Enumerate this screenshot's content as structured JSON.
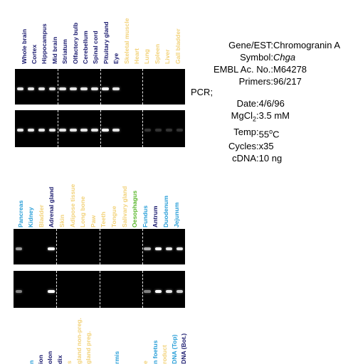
{
  "colors": {
    "navy": "#1a1a6e",
    "light_blue": "#2a9fd8",
    "yellow": "#f2d27a",
    "green": "#5cb82e"
  },
  "panel1": {
    "lanes": [
      {
        "label": "Whole brain",
        "color": "navy",
        "band1": 0.9,
        "band2": 0.9
      },
      {
        "label": "Cortex",
        "color": "navy",
        "band1": 0.9,
        "band2": 0.9
      },
      {
        "label": "Hippocampus",
        "color": "navy",
        "band1": 0.9,
        "band2": 0.9
      },
      {
        "label": "Mid brain",
        "color": "navy",
        "band1": 0.9,
        "band2": 0.9
      },
      {
        "label": "Striatum",
        "color": "navy",
        "band1": 0.9,
        "band2": 0.9
      },
      {
        "label": "Olfactory bulb",
        "color": "navy",
        "band1": 0.9,
        "band2": 0.9
      },
      {
        "label": "Cerebellum",
        "color": "navy",
        "band1": 0.9,
        "band2": 0.9
      },
      {
        "label": "Spinal cord",
        "color": "navy",
        "band1": 0.9,
        "band2": 0.9
      },
      {
        "label": "Pituitary gland",
        "color": "navy",
        "band1": 1.0,
        "band2": 1.0
      },
      {
        "label": "Eye",
        "color": "navy",
        "band1": 0.9,
        "band2": 0.9
      },
      {
        "label": "Skeletal muscle",
        "color": "yellow",
        "band1": 0,
        "band2": 0
      },
      {
        "label": "Heart",
        "color": "yellow",
        "band1": 0,
        "band2": 0
      },
      {
        "label": "Lung",
        "color": "yellow",
        "band1": 0,
        "band2": 0.2
      },
      {
        "label": "Spleen",
        "color": "yellow",
        "band1": 0,
        "band2": 0.2
      },
      {
        "label": "Liver",
        "color": "yellow",
        "band1": 0,
        "band2": 0.2
      },
      {
        "label": "Gall bladder",
        "color": "yellow",
        "band1": 0,
        "band2": 0.2
      }
    ]
  },
  "panel2": {
    "lanes": [
      {
        "label": "Pancreas",
        "color": "light_blue",
        "band1": 0.6,
        "band2": 0.5
      },
      {
        "label": "Kidney",
        "color": "light_blue",
        "band1": 0,
        "band2": 0
      },
      {
        "label": "Bladder",
        "color": "yellow",
        "band1": 0,
        "band2": 0
      },
      {
        "label": "Adrenal gland",
        "color": "navy",
        "band1": 1.0,
        "band2": 1.0
      },
      {
        "label": "Skin",
        "color": "yellow",
        "band1": 0,
        "band2": 0
      },
      {
        "label": "Adipose tissue",
        "color": "yellow",
        "band1": 0,
        "band2": 0
      },
      {
        "label": "Long bone",
        "color": "yellow",
        "band1": 0,
        "band2": 0
      },
      {
        "label": "Paw",
        "color": "yellow",
        "band1": 0,
        "band2": 0
      },
      {
        "label": "Teeth",
        "color": "yellow",
        "band1": 0,
        "band2": 0
      },
      {
        "label": "Tongue",
        "color": "yellow",
        "band1": 0,
        "band2": 0
      },
      {
        "label": "Salivary gland",
        "color": "yellow",
        "band1": 0,
        "band2": 0
      },
      {
        "label": "Oesophagus",
        "color": "green",
        "band1": 0,
        "band2": 0
      },
      {
        "label": "Fundus",
        "color": "light_blue",
        "band1": 0.7,
        "band2": 0.5
      },
      {
        "label": "Antrum",
        "color": "navy",
        "band1": 1.0,
        "band2": 1.0
      },
      {
        "label": "Duodenum",
        "color": "light_blue",
        "band1": 0.9,
        "band2": 0.9
      },
      {
        "label": "Jejunum",
        "color": "light_blue",
        "band1": 0.9,
        "band2": 0.8
      }
    ]
  },
  "panel3": {
    "lanes": [
      {
        "label": "n",
        "color": "light_blue"
      },
      {
        "label": "ion",
        "color": "navy"
      },
      {
        "label": "olon",
        "color": "navy"
      },
      {
        "label": "dix",
        "color": "navy"
      },
      {
        "label": "s",
        "color": "yellow"
      },
      {
        "label": "gland non-preg.",
        "color": "yellow"
      },
      {
        "label": "gland preg.",
        "color": "yellow"
      },
      {
        "label": "",
        "color": "yellow"
      },
      {
        "label": "",
        "color": "yellow"
      },
      {
        "label": "rmis",
        "color": "light_blue"
      },
      {
        "label": "",
        "color": "yellow"
      },
      {
        "label": "",
        "color": "yellow"
      },
      {
        "label": "e",
        "color": "yellow"
      },
      {
        "label": "n foetus",
        "color": "light_blue"
      },
      {
        "label": "roduct",
        "color": "yellow"
      },
      {
        "label": "DNA (Top)",
        "color": "light_blue"
      },
      {
        "label": "DNA (Bot.)",
        "color": "navy"
      }
    ]
  },
  "info": {
    "gene_key": "Gene/EST:",
    "gene_val": "Chromogranin A",
    "symbol_key": "Symbol:",
    "symbol_val": "Chga",
    "embl_key": "EMBL Ac. No.:",
    "embl_val": "M64278",
    "primers_key": "Primers:",
    "primers_val": "96/217",
    "pcr_key": "PCR;",
    "date_key": "Date:",
    "date_val": "4/6/96",
    "mgcl_key": "MgCl",
    "mgcl_sub": "2",
    "mgcl_sep": ":",
    "mgcl_val": "3.5 mM",
    "temp_key": "Temp:",
    "temp_val": "55",
    "temp_sup": "o",
    "temp_unit": "C",
    "cycles_key": "Cycles:",
    "cycles_val": "x35",
    "cdna_key": "cDNA:",
    "cdna_val": "10 ng"
  }
}
